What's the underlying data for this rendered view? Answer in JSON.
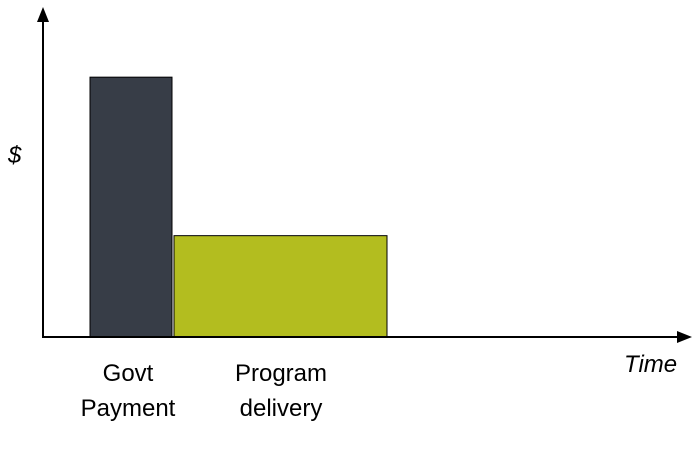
{
  "chart_data": {
    "type": "bar",
    "title": "",
    "xlabel": "Time",
    "ylabel": "$",
    "grid": false,
    "legend": "none",
    "categories": [
      {
        "lines": [
          "Govt",
          "Payment"
        ]
      },
      {
        "lines": [
          "Program",
          "delivery"
        ]
      }
    ],
    "values": [
      1.0,
      0.39
    ],
    "ylim": [
      0,
      1.22
    ],
    "colors": [
      "#373d47",
      "#b3bd1f"
    ]
  }
}
